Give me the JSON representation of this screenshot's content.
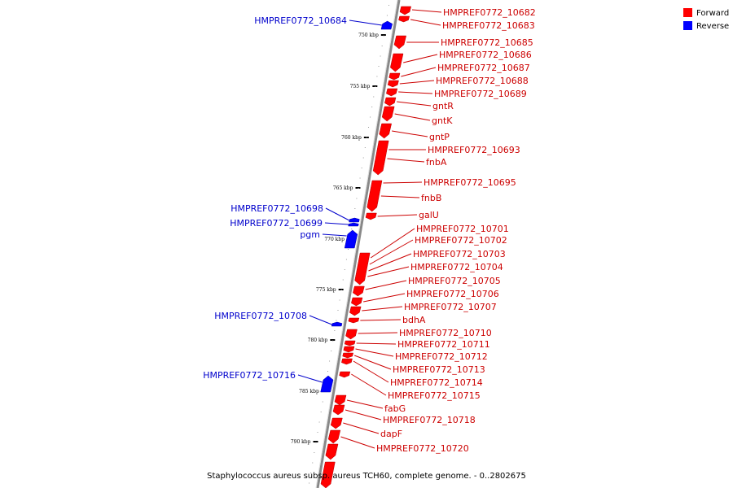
{
  "legend": {
    "items": [
      {
        "label": "Forward",
        "color": "#ff0000"
      },
      {
        "label": "Reverse",
        "color": "#0000ff"
      }
    ]
  },
  "caption": "Staphylococcus aureus subsp. aureus TCH60, complete genome. - 0..2802675",
  "colors": {
    "forward": "#ff0000",
    "forward_label": "#cc0000",
    "reverse": "#0000ff",
    "reverse_label": "#0000cc",
    "backbone": "#888888"
  },
  "ticks": [
    {
      "label": "750 kbp",
      "kbp": 750
    },
    {
      "label": "755 kbp",
      "kbp": 755
    },
    {
      "label": "760 kbp",
      "kbp": 760
    },
    {
      "label": "765 kbp",
      "kbp": 765
    },
    {
      "label": "770 kbp",
      "kbp": 770
    },
    {
      "label": "775 kbp",
      "kbp": 775
    },
    {
      "label": "780 kbp",
      "kbp": 780
    },
    {
      "label": "785 kbp",
      "kbp": 785
    },
    {
      "label": "790 kbp",
      "kbp": 790
    }
  ],
  "forward_genes": [
    "HMPREF0772_10682",
    "HMPREF0772_10683",
    "HMPREF0772_10685",
    "HMPREF0772_10686",
    "HMPREF0772_10687",
    "HMPREF0772_10688",
    "HMPREF0772_10689",
    "gntR",
    "gntK",
    "gntP",
    "HMPREF0772_10693",
    "fnbA",
    "HMPREF0772_10695",
    "fnbB",
    "galU",
    "HMPREF0772_10701",
    "HMPREF0772_10702",
    "HMPREF0772_10703",
    "HMPREF0772_10704",
    "HMPREF0772_10705",
    "HMPREF0772_10706",
    "HMPREF0772_10707",
    "bdhA",
    "HMPREF0772_10710",
    "HMPREF0772_10711",
    "HMPREF0772_10712",
    "HMPREF0772_10713",
    "HMPREF0772_10714",
    "HMPREF0772_10715",
    "fabG",
    "HMPREF0772_10718",
    "dapF",
    "HMPREF0772_10720"
  ],
  "reverse_genes": [
    "HMPREF0772_10684",
    "HMPREF0772_10698",
    "HMPREF0772_10699",
    "pgm",
    "HMPREF0772_10708",
    "HMPREF0772_10716"
  ]
}
